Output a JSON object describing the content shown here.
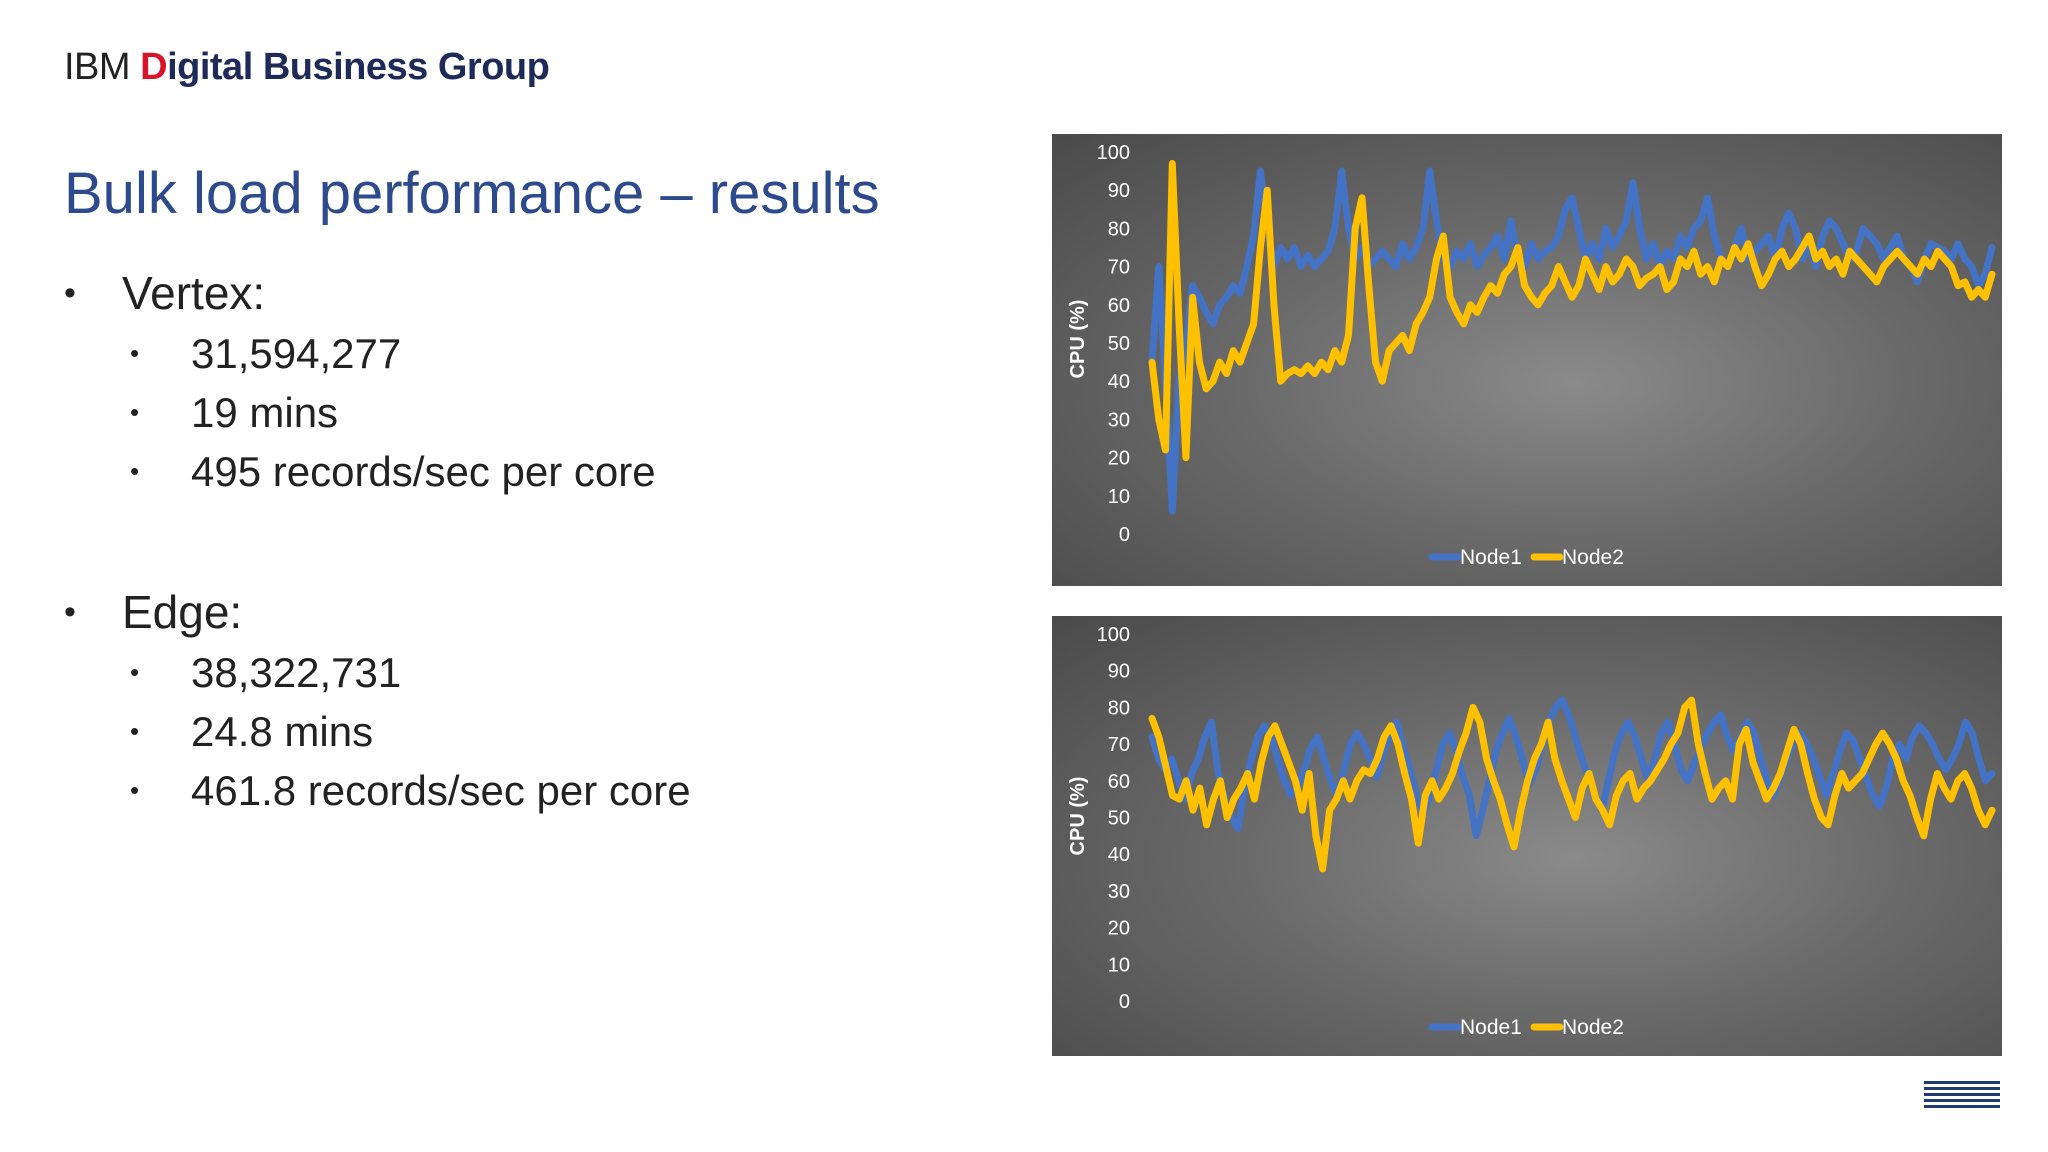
{
  "header": {
    "brand_prefix": "IBM",
    "brand_d": "D",
    "brand_digital_rest": "igital",
    "brand_rest": "Business Group"
  },
  "slide": {
    "title": "Bulk load performance – results",
    "sections": [
      {
        "label": "Vertex:",
        "items": [
          "31,594,277",
          "19 mins",
          "495 records/sec per core"
        ]
      },
      {
        "label": "Edge:",
        "items": [
          "38,322,731",
          "24.8 mins",
          "461.8 records/sec per core"
        ]
      }
    ]
  },
  "footer": {
    "logo": "IBM"
  },
  "colors": {
    "node1": "#4472c4",
    "node2": "#ffc000",
    "plot_text": "#ffffff"
  },
  "chart_data": [
    {
      "type": "line",
      "title": "",
      "xlabel": "",
      "ylabel": "CPU (%)",
      "ylim": [
        0,
        100
      ],
      "yticks": [
        0,
        10,
        20,
        30,
        40,
        50,
        60,
        70,
        80,
        90,
        100
      ],
      "grid": false,
      "legend": "bottom-center",
      "series": [
        {
          "name": "Node1",
          "values": [
            45,
            70,
            40,
            6,
            40,
            50,
            65,
            62,
            58,
            55,
            60,
            62,
            65,
            63,
            70,
            78,
            95,
            80,
            70,
            75,
            72,
            75,
            70,
            73,
            70,
            72,
            74,
            80,
            95,
            80,
            72,
            75,
            70,
            72,
            74,
            72,
            70,
            76,
            72,
            75,
            80,
            95,
            82,
            72,
            70,
            74,
            72,
            76,
            70,
            73,
            75,
            78,
            72,
            82,
            72,
            70,
            76,
            72,
            74,
            75,
            78,
            85,
            88,
            80,
            72,
            76,
            72,
            80,
            75,
            78,
            82,
            92,
            80,
            72,
            76,
            70,
            74,
            72,
            78,
            75,
            80,
            82,
            88,
            78,
            72,
            70,
            75,
            80,
            72,
            74,
            76,
            78,
            72,
            80,
            84,
            80,
            72,
            76,
            70,
            78,
            82,
            80,
            76,
            72,
            74,
            80,
            78,
            76,
            72,
            75,
            78,
            72,
            70,
            66,
            72,
            76,
            75,
            74,
            72,
            76,
            72,
            70,
            65,
            68,
            75
          ]
        },
        {
          "name": "Node2",
          "values": [
            45,
            30,
            22,
            97,
            55,
            20,
            62,
            45,
            38,
            40,
            45,
            42,
            48,
            45,
            50,
            55,
            75,
            90,
            60,
            40,
            42,
            43,
            42,
            44,
            42,
            45,
            43,
            48,
            45,
            52,
            80,
            88,
            65,
            45,
            40,
            48,
            50,
            52,
            48,
            55,
            58,
            62,
            72,
            78,
            62,
            58,
            55,
            60,
            58,
            62,
            65,
            63,
            68,
            70,
            75,
            65,
            62,
            60,
            63,
            65,
            70,
            66,
            62,
            65,
            72,
            68,
            64,
            70,
            66,
            68,
            72,
            70,
            65,
            67,
            68,
            70,
            64,
            66,
            72,
            70,
            74,
            68,
            70,
            66,
            72,
            70,
            75,
            72,
            76,
            70,
            65,
            68,
            72,
            74,
            70,
            72,
            75,
            78,
            72,
            74,
            70,
            72,
            68,
            74,
            72,
            70,
            68,
            66,
            70,
            72,
            74,
            72,
            70,
            68,
            72,
            70,
            74,
            72,
            70,
            65,
            66,
            62,
            64,
            62,
            68
          ]
        }
      ]
    },
    {
      "type": "line",
      "title": "",
      "xlabel": "",
      "ylabel": "CPU (%)",
      "ylim": [
        0,
        100
      ],
      "yticks": [
        0,
        10,
        20,
        30,
        40,
        50,
        60,
        70,
        80,
        90,
        100
      ],
      "grid": false,
      "legend": "bottom-center",
      "series": [
        {
          "name": "Node1",
          "values": [
            72,
            66,
            63,
            66,
            60,
            55,
            62,
            66,
            72,
            76,
            62,
            55,
            50,
            47,
            58,
            66,
            72,
            75,
            72,
            66,
            60,
            56,
            58,
            63,
            69,
            72,
            66,
            60,
            56,
            63,
            70,
            73,
            70,
            66,
            61,
            68,
            72,
            76,
            69,
            63,
            56,
            51,
            56,
            63,
            70,
            73,
            68,
            61,
            56,
            45,
            52,
            60,
            68,
            73,
            77,
            72,
            66,
            59,
            63,
            70,
            76,
            80,
            82,
            78,
            72,
            66,
            61,
            56,
            52,
            60,
            68,
            73,
            76,
            72,
            66,
            60,
            66,
            73,
            76,
            70,
            63,
            60,
            65,
            69,
            73,
            76,
            78,
            72,
            68,
            72,
            76,
            73,
            66,
            60,
            56,
            61,
            66,
            71,
            73,
            70,
            66,
            61,
            56,
            62,
            68,
            73,
            71,
            66,
            61,
            56,
            53,
            58,
            66,
            70,
            66,
            72,
            75,
            73,
            70,
            66,
            63,
            66,
            70,
            76,
            73,
            66,
            60,
            62
          ]
        },
        {
          "name": "Node2",
          "values": [
            77,
            72,
            64,
            56,
            55,
            60,
            52,
            58,
            48,
            55,
            60,
            50,
            55,
            58,
            62,
            55,
            65,
            72,
            75,
            70,
            65,
            60,
            52,
            62,
            45,
            36,
            52,
            55,
            60,
            55,
            60,
            63,
            62,
            66,
            72,
            75,
            70,
            62,
            55,
            43,
            56,
            60,
            55,
            58,
            62,
            68,
            73,
            80,
            76,
            66,
            60,
            55,
            48,
            42,
            52,
            60,
            66,
            70,
            76,
            66,
            60,
            55,
            50,
            58,
            62,
            55,
            52,
            48,
            56,
            60,
            62,
            55,
            58,
            60,
            63,
            66,
            70,
            73,
            80,
            82,
            70,
            62,
            55,
            58,
            60,
            55,
            70,
            74,
            65,
            60,
            55,
            58,
            62,
            68,
            74,
            70,
            62,
            55,
            50,
            48,
            56,
            62,
            58,
            60,
            62,
            66,
            70,
            73,
            70,
            66,
            60,
            56,
            50,
            45,
            55,
            62,
            58,
            55,
            60,
            62,
            58,
            52,
            48,
            52
          ]
        }
      ]
    }
  ]
}
